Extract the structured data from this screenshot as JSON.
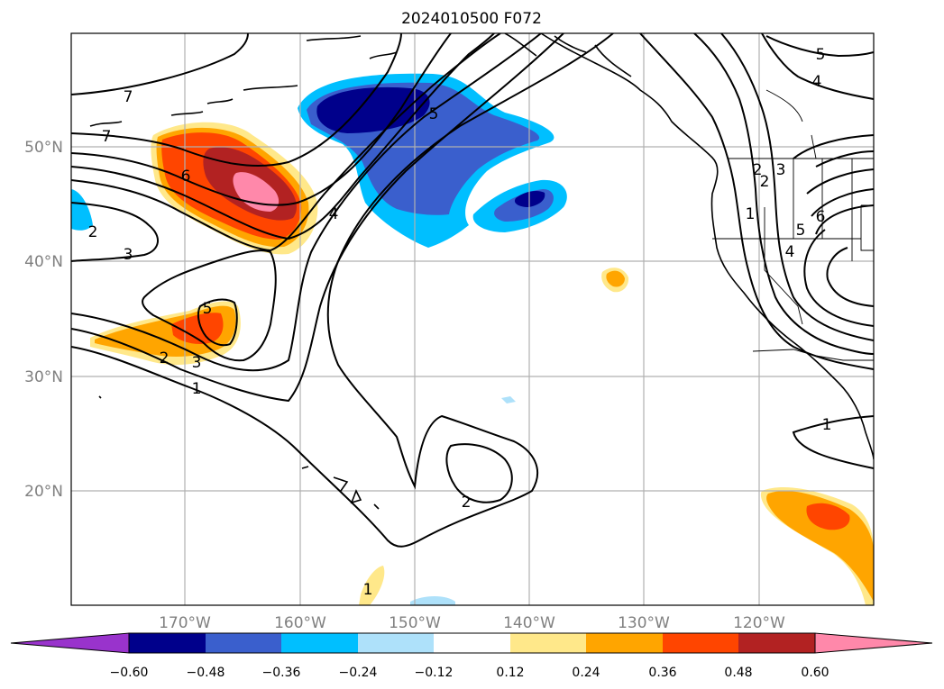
{
  "title": "2024010500 F072",
  "lat_labels": [
    "50°N",
    "40°N",
    "30°N",
    "20°N"
  ],
  "lon_labels": [
    "170°W",
    "160°W",
    "150°W",
    "140°W",
    "130°W",
    "120°W"
  ],
  "colorbar": {
    "ticks": [
      "−0.60",
      "−0.48",
      "−0.36",
      "−0.24",
      "−0.12",
      "0.12",
      "0.24",
      "0.36",
      "0.48",
      "0.60"
    ],
    "colors": [
      "#9933cc",
      "#00008b",
      "#3a5fcd",
      "#00bfff",
      "#aee1fa",
      "#ffffff",
      "#ffe88a",
      "#ffa500",
      "#ff4500",
      "#b22222",
      "#ff88aa"
    ]
  },
  "contour_labels": [
    "7",
    "7",
    "6",
    "5",
    "4",
    "3",
    "2",
    "2",
    "3",
    "5",
    "2",
    "1",
    "2",
    "5",
    "4",
    "1",
    "2",
    "3",
    "6",
    "5",
    "4",
    "1",
    "1"
  ]
}
